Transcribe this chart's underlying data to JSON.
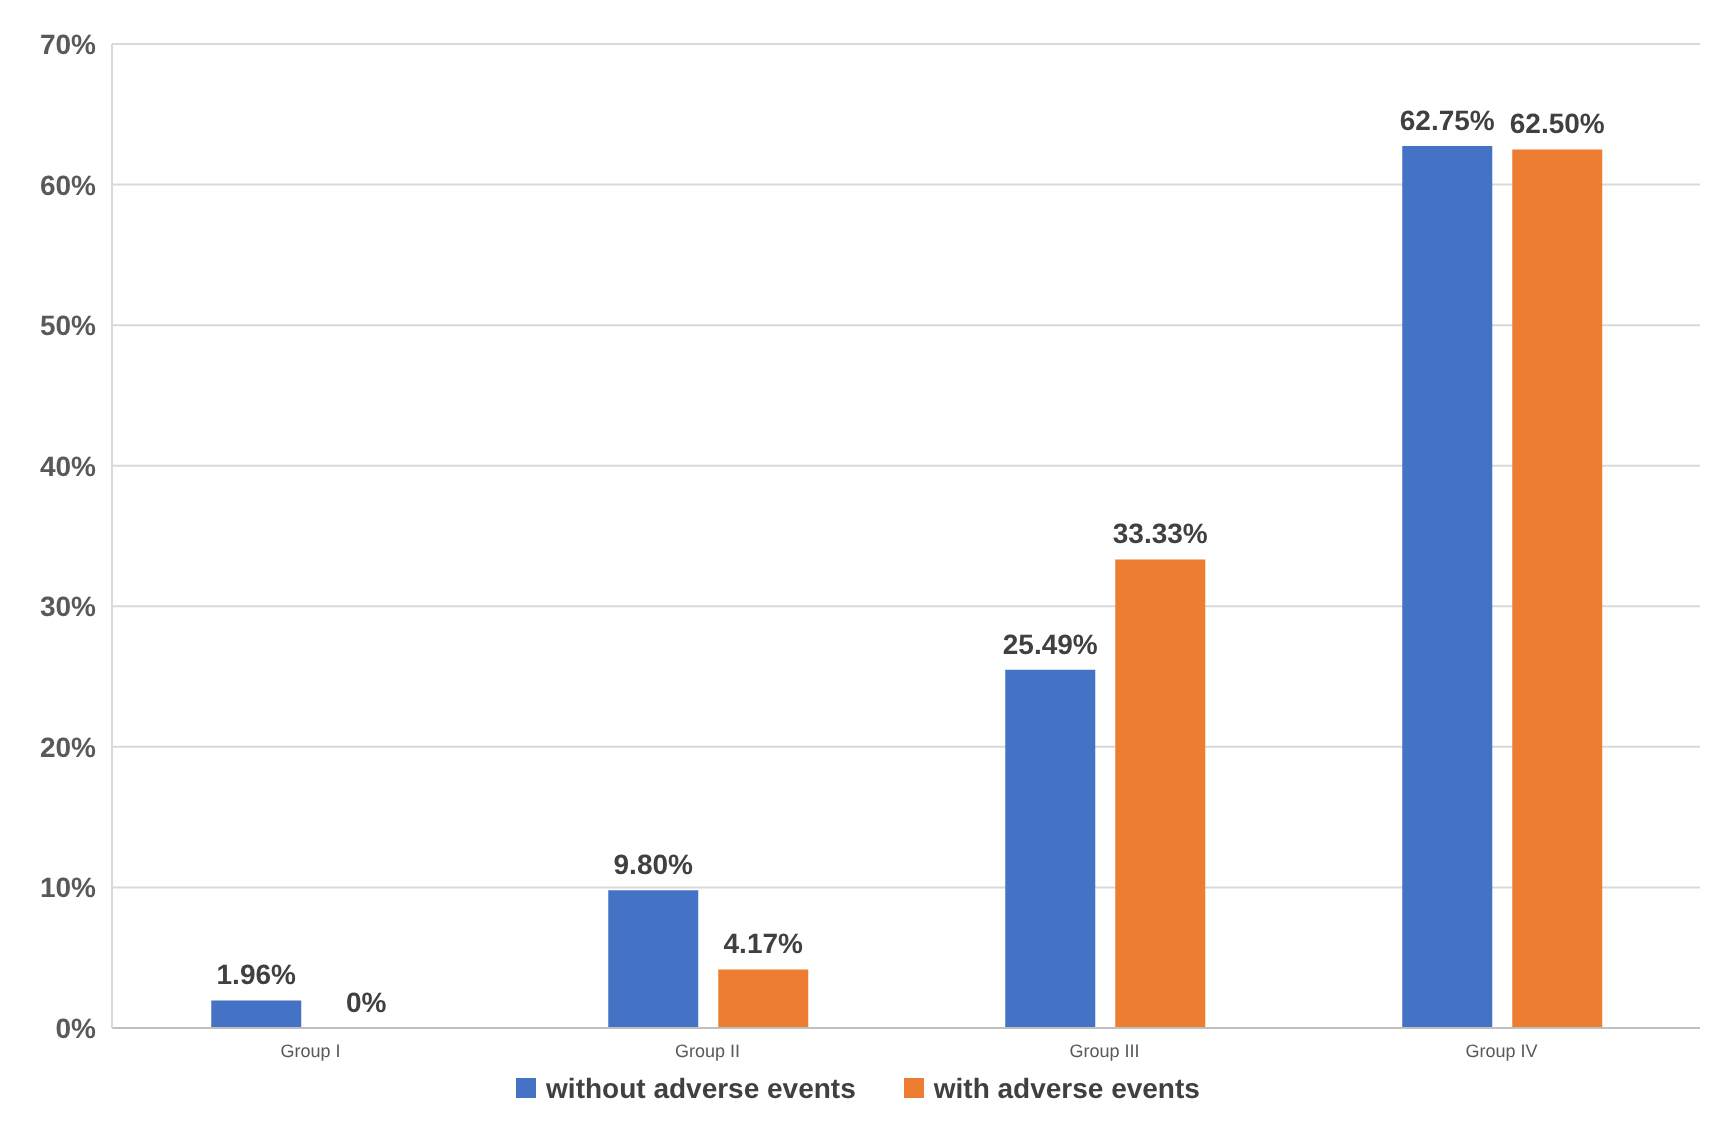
{
  "chart_data": {
    "type": "bar",
    "categories": [
      "Group I",
      "Group II",
      "Group III",
      "Group IV"
    ],
    "series": [
      {
        "name": "without adverse events",
        "color": "#4472c4",
        "values": [
          1.96,
          9.8,
          25.49,
          62.75
        ],
        "value_labels": [
          "1.96%",
          "9.80%",
          "25.49%",
          "62.75%"
        ]
      },
      {
        "name": "with adverse events",
        "color": "#ed7d31",
        "values": [
          0,
          4.17,
          33.33,
          62.5
        ],
        "value_labels": [
          "0%",
          "4.17%",
          "33.33%",
          "62.50%"
        ]
      }
    ],
    "ylim": [
      0,
      70
    ],
    "yticks": [
      {
        "value": 0,
        "label": "0%"
      },
      {
        "value": 10,
        "label": "10%"
      },
      {
        "value": 20,
        "label": "20%"
      },
      {
        "value": 30,
        "label": "30%"
      },
      {
        "value": 40,
        "label": "40%"
      },
      {
        "value": 50,
        "label": "50%"
      },
      {
        "value": 60,
        "label": "60%"
      },
      {
        "value": 70,
        "label": "70%"
      }
    ],
    "grid": "y",
    "legend": "bottom"
  }
}
